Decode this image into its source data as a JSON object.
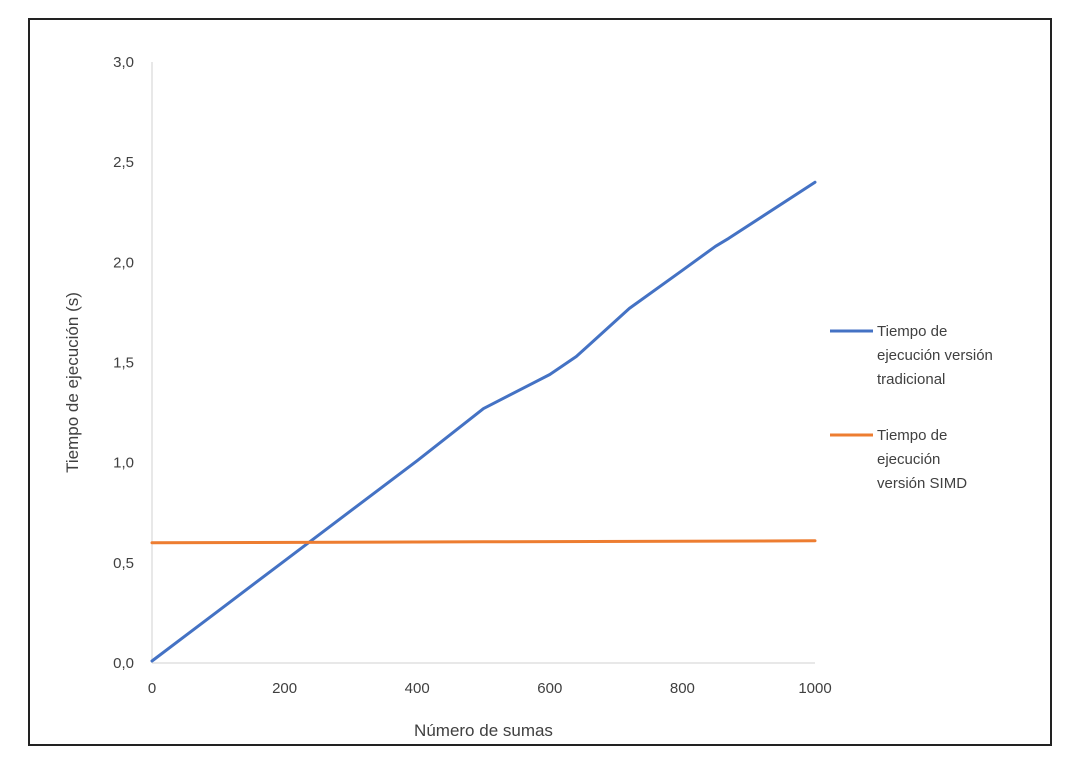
{
  "chart_data": {
    "type": "line",
    "xlabel": "Número de sumas",
    "ylabel": "Tiempo de ejecución (s)",
    "xlim": [
      0,
      1000
    ],
    "ylim": [
      0,
      3
    ],
    "x_ticks": [
      0,
      200,
      400,
      600,
      800,
      1000
    ],
    "y_ticks": [
      0,
      0.5,
      1.0,
      1.5,
      2.0,
      2.5,
      3.0
    ],
    "x_tick_labels": [
      "0",
      "200",
      "400",
      "600",
      "800",
      "1000"
    ],
    "y_tick_labels": [
      "0,0",
      "0,5",
      "1,0",
      "1,5",
      "2,0",
      "2,5",
      "3,0"
    ],
    "grid": false,
    "legend_position": "right",
    "series": [
      {
        "name": "Tiempo de ejecución versión tradicional",
        "legend_lines": [
          "Tiempo de",
          "ejecución versión",
          "tradicional"
        ],
        "color": "#4472C4",
        "x": [
          0,
          100,
          200,
          300,
          400,
          500,
          600,
          640,
          660,
          720,
          800,
          850,
          870,
          1000
        ],
        "y": [
          0.01,
          0.26,
          0.51,
          0.76,
          1.01,
          1.27,
          1.44,
          1.53,
          1.59,
          1.77,
          1.96,
          2.08,
          2.12,
          2.4
        ]
      },
      {
        "name": "Tiempo de ejecución versión SIMD",
        "legend_lines": [
          "Tiempo de",
          "ejecución",
          "versión SIMD"
        ],
        "color": "#ED7D31",
        "x": [
          0,
          500,
          1000
        ],
        "y": [
          0.6,
          0.605,
          0.61
        ]
      }
    ]
  }
}
